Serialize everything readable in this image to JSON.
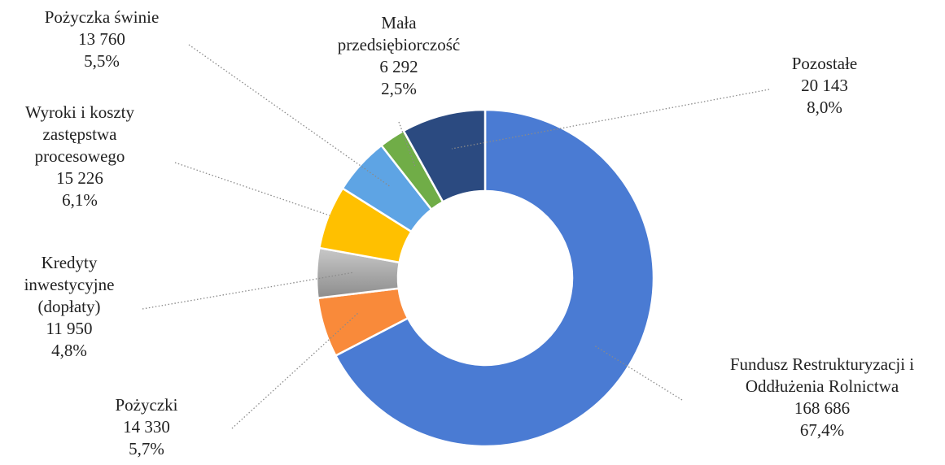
{
  "chart_data": {
    "type": "pie",
    "donut": true,
    "categories": [
      "Fundusz Restrukturyzacji i Oddłużenia Rolnictwa",
      "Pożyczki",
      "Kredyty inwestycyjne (dopłaty)",
      "Wyroki i koszty zastępstwa procesowego",
      "Pożyczka świnie",
      "Mała przedsiębiorczość",
      "Pozostałe"
    ],
    "values": [
      168686,
      14330,
      11950,
      15226,
      13760,
      6292,
      20143
    ],
    "value_labels": [
      "168 686",
      "14 330",
      "11 950",
      "15 226",
      "13 760",
      "6 292",
      "20 143"
    ],
    "percent": [
      67.4,
      5.7,
      4.8,
      6.1,
      5.5,
      2.5,
      8.0
    ],
    "percent_labels": [
      "67,4%",
      "5,7%",
      "4,8%",
      "6,1%",
      "5,5%",
      "2,5%",
      "8,0%"
    ],
    "colors": [
      "#4a7bd3",
      "#f98a3a",
      "#a6a6a6",
      "#ffc000",
      "#5ea4e4",
      "#70ad47",
      "#2b4a80"
    ]
  }
}
